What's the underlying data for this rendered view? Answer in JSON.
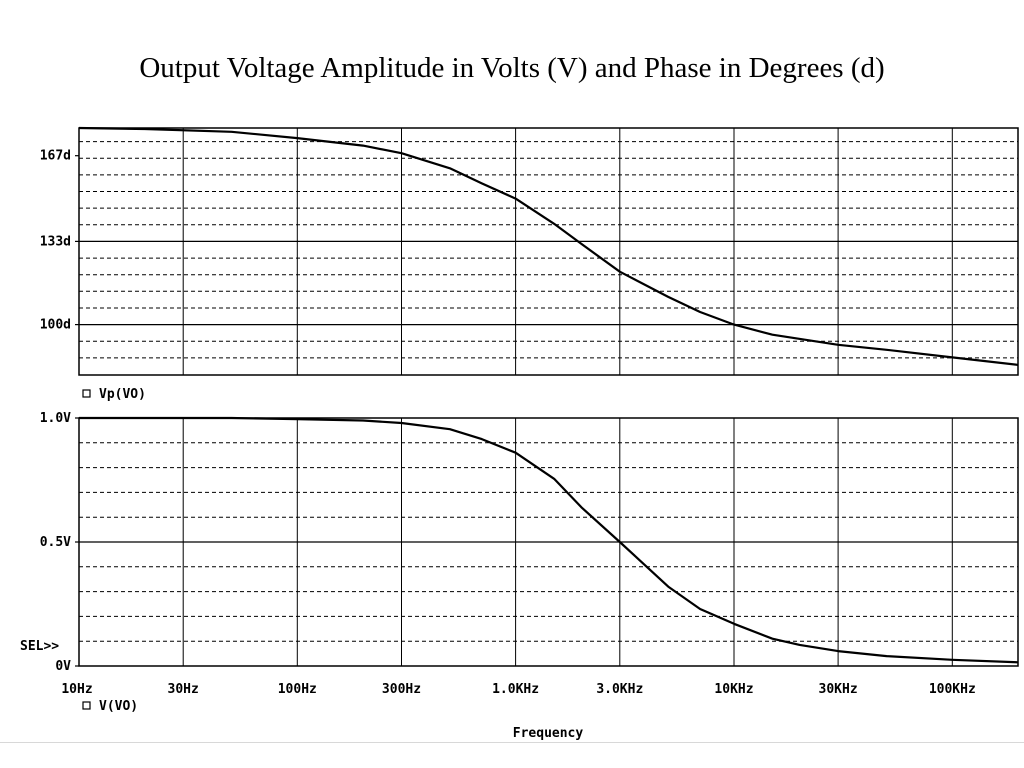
{
  "title": "Output Voltage Amplitude in Volts (V) and Phase in Degrees (d)",
  "xaxis_label": "Frequency",
  "sel_marker": "SEL>>",
  "chart_data": [
    {
      "type": "line",
      "name": "phase",
      "legend": "Vp(VO)",
      "xscale": "log",
      "xlim": [
        10,
        200000
      ],
      "ylim": [
        80,
        178
      ],
      "yticks": [
        {
          "value": 167,
          "label": "167d"
        },
        {
          "value": 133,
          "label": "133d"
        },
        {
          "value": 100,
          "label": "100d"
        }
      ],
      "grid": true,
      "series": [
        {
          "name": "Vp(VO)",
          "x": [
            10,
            20,
            50,
            100,
            200,
            300,
            500,
            700,
            1000,
            1500,
            2000,
            3000,
            5000,
            7000,
            10000,
            15000,
            30000,
            50000,
            100000,
            200000
          ],
          "y": [
            178,
            177.6,
            176.5,
            174,
            171,
            168,
            162,
            156,
            150,
            140,
            132,
            121,
            111,
            105,
            100,
            96,
            92,
            90,
            87,
            84
          ]
        }
      ]
    },
    {
      "type": "line",
      "name": "amplitude",
      "legend": "V(VO)",
      "xscale": "log",
      "xlim": [
        10,
        200000
      ],
      "ylim": [
        0,
        1.0
      ],
      "yticks": [
        {
          "value": 1.0,
          "label": "1.0V"
        },
        {
          "value": 0.5,
          "label": "0.5V"
        },
        {
          "value": 0,
          "label": "0V"
        }
      ],
      "xticks": [
        {
          "value": 10,
          "label": "10Hz"
        },
        {
          "value": 30,
          "label": "30Hz"
        },
        {
          "value": 100,
          "label": "100Hz"
        },
        {
          "value": 300,
          "label": "300Hz"
        },
        {
          "value": 1000,
          "label": "1.0KHz"
        },
        {
          "value": 3000,
          "label": "3.0KHz"
        },
        {
          "value": 10000,
          "label": "10KHz"
        },
        {
          "value": 30000,
          "label": "30KHz"
        },
        {
          "value": 100000,
          "label": "100KHz"
        }
      ],
      "xlabel": "Frequency",
      "grid": true,
      "series": [
        {
          "name": "V(VO)",
          "x": [
            10,
            50,
            100,
            200,
            300,
            500,
            700,
            1000,
            1500,
            2000,
            3000,
            5000,
            7000,
            10000,
            15000,
            20000,
            30000,
            50000,
            100000,
            200000
          ],
          "y": [
            1.0,
            1.0,
            0.995,
            0.99,
            0.98,
            0.955,
            0.915,
            0.86,
            0.755,
            0.64,
            0.5,
            0.32,
            0.23,
            0.17,
            0.11,
            0.085,
            0.06,
            0.04,
            0.025,
            0.015
          ]
        }
      ]
    }
  ]
}
